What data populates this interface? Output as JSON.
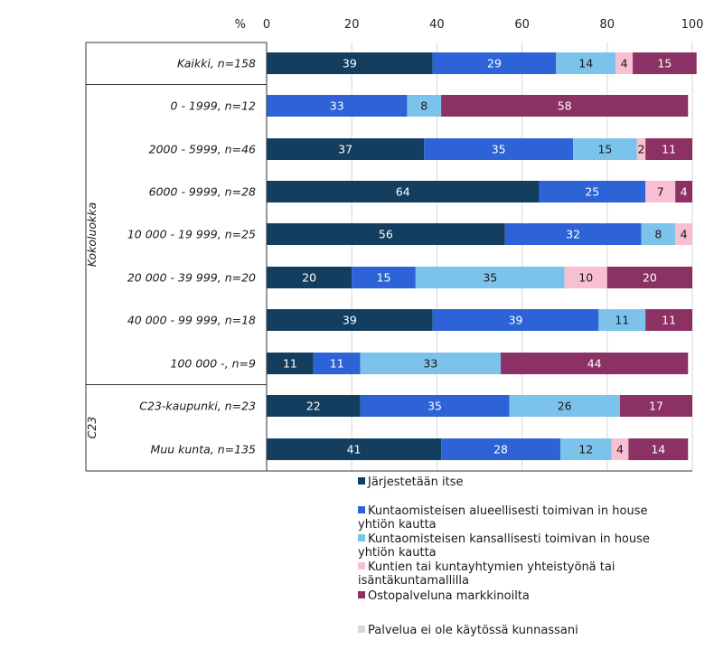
{
  "chart_data": {
    "type": "bar",
    "orientation": "horizontal",
    "stacked": true,
    "axis_unit_label": "%",
    "xlim": [
      0,
      100
    ],
    "xticks": [
      0,
      20,
      40,
      60,
      80,
      100
    ],
    "grid": true,
    "groups": [
      {
        "label": "",
        "rows": [
          0
        ]
      },
      {
        "label": "Kokoluokka",
        "rows": [
          1,
          2,
          3,
          4,
          5,
          6,
          7
        ]
      },
      {
        "label": "C23",
        "rows": [
          8,
          9
        ]
      }
    ],
    "categories": [
      "Kaikki, n=158",
      "0 - 1999, n=12",
      "2000 - 5999, n=46",
      "6000 - 9999, n=28",
      "10 000 - 19 999, n=25",
      "20 000 - 39 999, n=20",
      "40 000 - 99 999, n=18",
      "100 000 -, n=9",
      "C23-kaupunki, n=23",
      "Muu kunta, n=135"
    ],
    "series": [
      {
        "name": "Järjestetään itse",
        "color": "#133e5f",
        "label_color": "#ffffff",
        "values": [
          39,
          0,
          37,
          64,
          56,
          20,
          39,
          11,
          22,
          41
        ]
      },
      {
        "name": "Kuntaomisteisen alueellisesti toimivan in house yhtiön kautta",
        "color": "#2d63d6",
        "label_color": "#ffffff",
        "values": [
          29,
          33,
          35,
          25,
          32,
          15,
          39,
          11,
          35,
          28
        ]
      },
      {
        "name": "Kuntaomisteisen kansallisesti toimivan in house yhtiön kautta",
        "color": "#7cc3ec",
        "label_color": "#1a1a1a",
        "values": [
          14,
          8,
          15,
          0,
          8,
          35,
          11,
          33,
          26,
          12
        ]
      },
      {
        "name": "Kuntien tai kuntayhtymien yhteistyönä tai isäntäkuntamallilla",
        "color": "#f7bfd1",
        "label_color": "#1a1a1a",
        "values": [
          4,
          0,
          2,
          7,
          4,
          10,
          0,
          0,
          0,
          4
        ]
      },
      {
        "name": "Ostopalveluna markkinoilta",
        "color": "#8b3163",
        "label_color": "#ffffff",
        "values": [
          15,
          58,
          11,
          4,
          0,
          20,
          11,
          44,
          17,
          14
        ]
      },
      {
        "name": "Palvelua ei ole käytössä kunnassani",
        "color": "#d9d9d9",
        "label_color": "#1a1a1a",
        "values": [
          0,
          0,
          0,
          0,
          0,
          0,
          0,
          0,
          0,
          0
        ]
      }
    ],
    "legend_placement": "bottom"
  }
}
